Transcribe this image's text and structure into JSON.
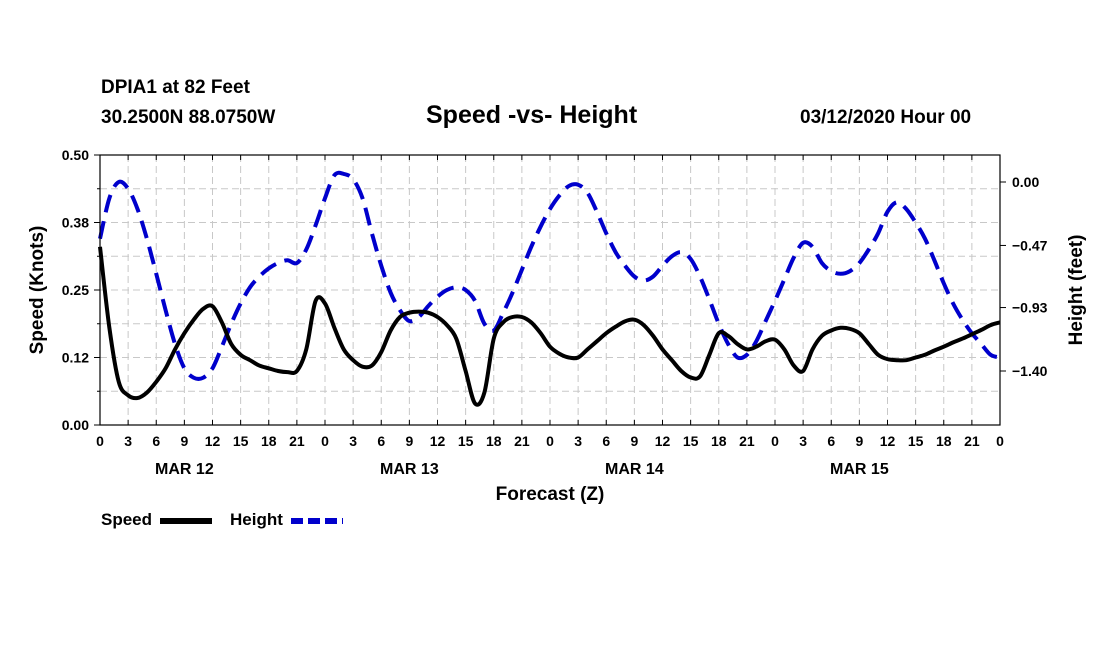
{
  "header": {
    "station": "DPIA1 at 82 Feet",
    "location": "30.2500N 88.0750W",
    "title": "Speed -vs- Height",
    "run": "03/12/2020 Hour 00"
  },
  "chart_data": {
    "type": "line",
    "title": "Speed -vs- Height",
    "xlabel": "Forecast (Z)",
    "ylabel_left": "Speed (Knots)",
    "ylabel_right": "Height (feet)",
    "x_range_hours": [
      0,
      96
    ],
    "x_tick_step_hours": 3,
    "x_tick_labels": [
      "0",
      "3",
      "6",
      "9",
      "12",
      "15",
      "18",
      "21",
      "0",
      "3",
      "6",
      "9",
      "12",
      "15",
      "18",
      "21",
      "0",
      "3",
      "6",
      "9",
      "12",
      "15",
      "18",
      "21",
      "0",
      "3",
      "6",
      "9",
      "12",
      "15",
      "18",
      "21",
      "0"
    ],
    "day_labels": [
      {
        "label": "MAR 12",
        "hour": 9
      },
      {
        "label": "MAR 13",
        "hour": 33
      },
      {
        "label": "MAR 14",
        "hour": 57
      },
      {
        "label": "MAR 15",
        "hour": 81
      }
    ],
    "y_left": {
      "min": 0.0,
      "max": 0.5,
      "ticks": [
        0.0,
        0.125,
        0.25,
        0.375,
        0.5
      ],
      "tick_labels": [
        "0.00",
        "0.12",
        "0.25",
        "0.38",
        "0.50"
      ]
    },
    "y_right": {
      "min": -1.8,
      "max": 0.2,
      "ticks": [
        -1.4,
        -0.93,
        -0.47,
        0.0
      ],
      "tick_labels": [
        "−1.40",
        "−0.93",
        "−0.47",
        "0.00"
      ]
    },
    "grid": true,
    "series": [
      {
        "name": "Speed",
        "axis": "left",
        "color": "#000000",
        "dash": "solid",
        "x": [
          0,
          1,
          2,
          3,
          4,
          5,
          6,
          7,
          8,
          9,
          10,
          11,
          12,
          13,
          14,
          15,
          16,
          17,
          18,
          19,
          20,
          21,
          22,
          23,
          24,
          25,
          26,
          27,
          28,
          29,
          30,
          31,
          32,
          33,
          34,
          35,
          36,
          37,
          38,
          39,
          40,
          41,
          42,
          43,
          44,
          45,
          46,
          47,
          48,
          49,
          50,
          51,
          52,
          53,
          54,
          55,
          56,
          57,
          58,
          59,
          60,
          61,
          62,
          63,
          64,
          65,
          66,
          67,
          68,
          69,
          70,
          71,
          72,
          73,
          74,
          75,
          76,
          77,
          78,
          79,
          80,
          81,
          82,
          83,
          84,
          85,
          86,
          87,
          88,
          89,
          90,
          91,
          92,
          93,
          94,
          95,
          96
        ],
        "values": [
          0.33,
          0.18,
          0.08,
          0.055,
          0.05,
          0.06,
          0.08,
          0.105,
          0.14,
          0.17,
          0.195,
          0.215,
          0.22,
          0.19,
          0.15,
          0.13,
          0.12,
          0.11,
          0.105,
          0.1,
          0.098,
          0.1,
          0.14,
          0.23,
          0.225,
          0.18,
          0.14,
          0.12,
          0.108,
          0.11,
          0.135,
          0.175,
          0.2,
          0.208,
          0.21,
          0.208,
          0.2,
          0.185,
          0.16,
          0.1,
          0.04,
          0.06,
          0.16,
          0.19,
          0.2,
          0.2,
          0.19,
          0.17,
          0.145,
          0.132,
          0.125,
          0.125,
          0.14,
          0.155,
          0.17,
          0.182,
          0.192,
          0.195,
          0.185,
          0.165,
          0.14,
          0.12,
          0.1,
          0.088,
          0.09,
          0.13,
          0.17,
          0.165,
          0.15,
          0.14,
          0.145,
          0.155,
          0.158,
          0.14,
          0.11,
          0.1,
          0.14,
          0.165,
          0.175,
          0.18,
          0.178,
          0.17,
          0.15,
          0.13,
          0.122,
          0.12,
          0.12,
          0.125,
          0.13,
          0.138,
          0.145,
          0.153,
          0.16,
          0.168,
          0.176,
          0.185,
          0.19
        ]
      },
      {
        "name": "Height",
        "axis": "right",
        "color": "#0000cc",
        "dash": "dashed",
        "x": [
          0,
          1,
          2,
          3,
          4,
          5,
          6,
          7,
          8,
          9,
          10,
          11,
          12,
          13,
          14,
          15,
          16,
          17,
          18,
          19,
          20,
          21,
          22,
          23,
          24,
          25,
          26,
          27,
          28,
          29,
          30,
          31,
          32,
          33,
          34,
          35,
          36,
          37,
          38,
          39,
          40,
          41,
          42,
          43,
          44,
          45,
          46,
          47,
          48,
          49,
          50,
          51,
          52,
          53,
          54,
          55,
          56,
          57,
          58,
          59,
          60,
          61,
          62,
          63,
          64,
          65,
          66,
          67,
          68,
          69,
          70,
          71,
          72,
          73,
          74,
          75,
          76,
          77,
          78,
          79,
          80,
          81,
          82,
          83,
          84,
          85,
          86,
          87,
          88,
          89,
          90,
          91,
          92,
          93,
          94,
          95,
          96
        ],
        "values": [
          -0.42,
          -0.12,
          0.0,
          -0.05,
          -0.2,
          -0.42,
          -0.68,
          -0.95,
          -1.2,
          -1.38,
          -1.45,
          -1.45,
          -1.38,
          -1.22,
          -1.05,
          -0.9,
          -0.78,
          -0.7,
          -0.64,
          -0.6,
          -0.58,
          -0.6,
          -0.5,
          -0.32,
          -0.12,
          0.05,
          0.06,
          0.02,
          -0.12,
          -0.38,
          -0.62,
          -0.82,
          -0.95,
          -1.03,
          -1.0,
          -0.92,
          -0.85,
          -0.8,
          -0.78,
          -0.8,
          -0.88,
          -1.05,
          -1.1,
          -0.97,
          -0.82,
          -0.65,
          -0.48,
          -0.33,
          -0.2,
          -0.1,
          -0.03,
          -0.02,
          -0.08,
          -0.22,
          -0.38,
          -0.52,
          -0.62,
          -0.7,
          -0.73,
          -0.7,
          -0.62,
          -0.55,
          -0.52,
          -0.57,
          -0.7,
          -0.87,
          -1.05,
          -1.2,
          -1.3,
          -1.28,
          -1.18,
          -1.03,
          -0.88,
          -0.72,
          -0.56,
          -0.45,
          -0.48,
          -0.6,
          -0.66,
          -0.68,
          -0.66,
          -0.6,
          -0.5,
          -0.38,
          -0.22,
          -0.15,
          -0.2,
          -0.3,
          -0.42,
          -0.58,
          -0.75,
          -0.9,
          -1.02,
          -1.12,
          -1.2,
          -1.28,
          -1.3
        ]
      }
    ],
    "legend": [
      {
        "label": "Speed",
        "color": "#000000",
        "dash": "solid"
      },
      {
        "label": "Height",
        "color": "#0000cc",
        "dash": "dashed"
      }
    ]
  }
}
